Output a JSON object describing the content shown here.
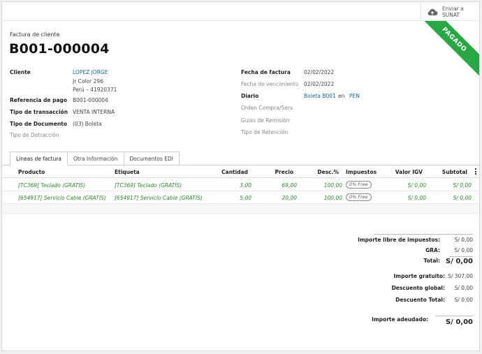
{
  "header": {
    "sunat_label": "Enviar a SUNAT",
    "status_ribbon": "PAGADO"
  },
  "document": {
    "kind": "Factura de cliente",
    "number": "B001-000004"
  },
  "left_fields": {
    "cliente_label": "Cliente",
    "cliente_name": "LOPEZ JORGE",
    "address_line1": "Jr Color 296",
    "address_line2": "Perú – 41920371",
    "ref_label": "Referencia de pago",
    "ref_value": "B001-000004",
    "tipo_trans_label": "Tipo de transacción",
    "tipo_trans_value": "VENTA INTERNA",
    "tipo_doc_label": "Tipo de Documento",
    "tipo_doc_value": "(03) Boleta",
    "detraccion_label": "Tipo de Detracción"
  },
  "right_fields": {
    "fecha_factura_label": "Fecha de factura",
    "fecha_factura_value": "02/02/2022",
    "fecha_venc_label": "Fecha de vencimiento",
    "fecha_venc_value": "02/02/2022",
    "diario_label": "Diario",
    "diario_value": "Boleta B001",
    "diario_en": "en",
    "diario_currency": "PEN",
    "orden_label": "Orden Compra/Serv.",
    "guias_label": "Guias de Remisión",
    "retencion_label": "Tipo de Retención"
  },
  "tabs": [
    {
      "label": "Líneas de factura"
    },
    {
      "label": "Otra Información"
    },
    {
      "label": "Documentos EDI"
    }
  ],
  "table": {
    "columns": [
      "Producto",
      "Etiqueta",
      "Cantidad",
      "Precio",
      "Desc.%",
      "Impuestos",
      "Valor IGV",
      "Subtotal"
    ],
    "rows": [
      {
        "producto": "[TC369] Teclado (GRATIS)",
        "etiqueta": "[TC369] Teclado (GRATIS)",
        "cantidad": "3,00",
        "precio": "69,00",
        "desc": "100,00",
        "impuesto": "0% Free",
        "igv": "S/ 0,00",
        "subtotal": "S/ 0,00"
      },
      {
        "producto": "[654917] Servicio Cable (GRATIS)",
        "etiqueta": "[654917] Servicio Cable (GRATIS)",
        "cantidad": "5,00",
        "precio": "20,00",
        "desc": "100,00",
        "impuesto": "0% Free",
        "igv": "S/ 0,00",
        "subtotal": "S/ 0,00"
      }
    ]
  },
  "totals": {
    "libre_label": "Importe libre de impuestos:",
    "libre_value": "S/ 0,00",
    "gra_label": "GRA:",
    "gra_value": "S/ 0,00",
    "total_label": "Total:",
    "total_value": "S/ 0,00",
    "gratuito_label": "Importe gratuito:",
    "gratuito_value": "S/ 307,00",
    "desc_global_label": "Descuento global:",
    "desc_global_value": "S/ 0,00",
    "desc_total_label": "Descuento Total:",
    "desc_total_value": "S/ 0,00",
    "adeudado_label": "Importe adeudado:",
    "adeudado_value": "S/ 0,00"
  },
  "colors": {
    "ribbon": "#28a745",
    "link": "#1a6aa0",
    "line_text": "#2e8b2e"
  }
}
